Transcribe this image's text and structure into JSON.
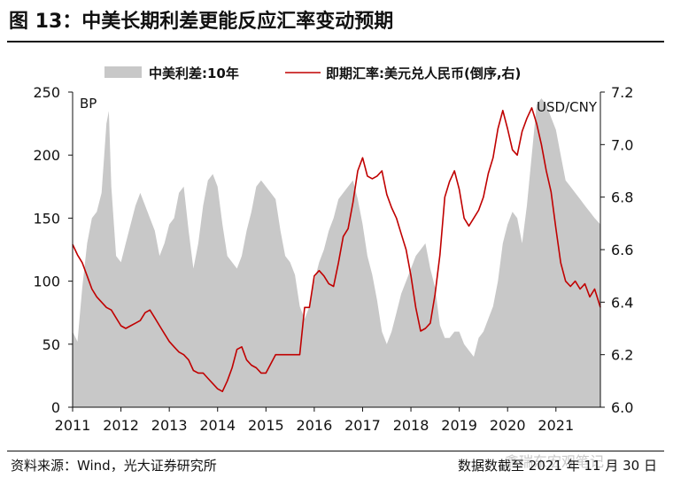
{
  "header": {
    "title": "图 13：中美长期利差更能反应汇率变动预期"
  },
  "footer": {
    "source": "资料来源：Wind，光大证券研究所",
    "date_note": "数据数截至 2021 年 11 月 30 日",
    "watermark": "鑫瑞东宏观笔记"
  },
  "colors": {
    "spread": "#c8c8c8",
    "fx": "#c00000"
  },
  "chart_data": {
    "type": "area",
    "legend_position": "top",
    "grid": false,
    "x_ticks": [
      "2011",
      "2012",
      "2013",
      "2014",
      "2015",
      "2016",
      "2017",
      "2018",
      "2019",
      "2020",
      "2021"
    ],
    "left_axis": {
      "unit": "BP",
      "ylim": [
        0,
        250
      ],
      "ticks": [
        "0",
        "50",
        "100",
        "150",
        "200",
        "250"
      ]
    },
    "right_axis": {
      "unit": "USD/CNY",
      "ylim": [
        6.0,
        7.2
      ],
      "inverted": true,
      "ticks": [
        "6.0",
        "6.2",
        "6.4",
        "6.6",
        "6.8",
        "7.0",
        "7.2"
      ]
    },
    "series": [
      {
        "name": "中美利差:10年",
        "type": "area",
        "axis": "left",
        "x": [
          2011.0,
          2011.1,
          2011.2,
          2011.3,
          2011.4,
          2011.5,
          2011.6,
          2011.7,
          2011.75,
          2011.8,
          2011.9,
          2012.0,
          2012.1,
          2012.2,
          2012.3,
          2012.4,
          2012.5,
          2012.6,
          2012.7,
          2012.8,
          2012.9,
          2013.0,
          2013.1,
          2013.2,
          2013.3,
          2013.4,
          2013.5,
          2013.6,
          2013.7,
          2013.8,
          2013.9,
          2014.0,
          2014.1,
          2014.2,
          2014.3,
          2014.4,
          2014.5,
          2014.6,
          2014.7,
          2014.8,
          2014.9,
          2015.0,
          2015.1,
          2015.2,
          2015.3,
          2015.4,
          2015.5,
          2015.6,
          2015.7,
          2015.8,
          2015.9,
          2016.0,
          2016.1,
          2016.2,
          2016.3,
          2016.4,
          2016.5,
          2016.6,
          2016.7,
          2016.8,
          2016.9,
          2017.0,
          2017.1,
          2017.2,
          2017.3,
          2017.4,
          2017.5,
          2017.6,
          2017.7,
          2017.8,
          2017.9,
          2018.0,
          2018.1,
          2018.2,
          2018.3,
          2018.4,
          2018.5,
          2018.6,
          2018.7,
          2018.8,
          2018.9,
          2019.0,
          2019.1,
          2019.2,
          2019.3,
          2019.4,
          2019.5,
          2019.6,
          2019.7,
          2019.8,
          2019.9,
          2020.0,
          2020.1,
          2020.2,
          2020.3,
          2020.4,
          2020.5,
          2020.6,
          2020.7,
          2020.8,
          2020.9,
          2021.0,
          2021.1,
          2021.2,
          2021.3,
          2021.4,
          2021.5,
          2021.6,
          2021.7,
          2021.8,
          2021.92
        ],
        "values": [
          60,
          52,
          95,
          130,
          150,
          155,
          170,
          225,
          235,
          175,
          120,
          115,
          130,
          145,
          160,
          170,
          160,
          150,
          140,
          120,
          130,
          145,
          150,
          170,
          175,
          140,
          110,
          130,
          160,
          180,
          185,
          175,
          145,
          120,
          115,
          110,
          120,
          140,
          155,
          175,
          180,
          175,
          170,
          165,
          140,
          120,
          115,
          105,
          80,
          70,
          80,
          100,
          115,
          125,
          140,
          150,
          165,
          170,
          175,
          180,
          165,
          145,
          120,
          105,
          85,
          60,
          50,
          60,
          75,
          90,
          100,
          110,
          120,
          125,
          130,
          110,
          95,
          65,
          55,
          55,
          60,
          60,
          50,
          45,
          40,
          55,
          60,
          70,
          80,
          100,
          130,
          145,
          155,
          150,
          130,
          160,
          200,
          240,
          245,
          240,
          230,
          220,
          200,
          180,
          175,
          170,
          165,
          160,
          155,
          150,
          145
        ]
      },
      {
        "name": "即期汇率:美元兑人民币(倒序,右)",
        "type": "line",
        "axis": "right",
        "x": [
          2011.0,
          2011.1,
          2011.2,
          2011.3,
          2011.4,
          2011.5,
          2011.6,
          2011.7,
          2011.8,
          2011.9,
          2012.0,
          2012.1,
          2012.2,
          2012.3,
          2012.4,
          2012.5,
          2012.6,
          2012.7,
          2012.8,
          2012.9,
          2013.0,
          2013.1,
          2013.2,
          2013.3,
          2013.4,
          2013.5,
          2013.6,
          2013.7,
          2013.8,
          2013.9,
          2014.0,
          2014.1,
          2014.2,
          2014.3,
          2014.4,
          2014.5,
          2014.6,
          2014.7,
          2014.8,
          2014.9,
          2015.0,
          2015.2,
          2015.4,
          2015.55,
          2015.62,
          2015.7,
          2015.8,
          2015.9,
          2016.0,
          2016.1,
          2016.2,
          2016.3,
          2016.4,
          2016.5,
          2016.6,
          2016.7,
          2016.8,
          2016.9,
          2017.0,
          2017.1,
          2017.2,
          2017.3,
          2017.4,
          2017.5,
          2017.6,
          2017.7,
          2017.8,
          2017.9,
          2018.0,
          2018.1,
          2018.2,
          2018.3,
          2018.4,
          2018.5,
          2018.6,
          2018.7,
          2018.8,
          2018.9,
          2019.0,
          2019.1,
          2019.2,
          2019.3,
          2019.4,
          2019.5,
          2019.6,
          2019.7,
          2019.8,
          2019.9,
          2020.0,
          2020.1,
          2020.2,
          2020.3,
          2020.4,
          2020.5,
          2020.6,
          2020.7,
          2020.8,
          2020.9,
          2021.0,
          2021.1,
          2021.2,
          2021.3,
          2021.4,
          2021.5,
          2021.6,
          2021.7,
          2021.8,
          2021.92
        ],
        "values": [
          6.62,
          6.58,
          6.55,
          6.5,
          6.45,
          6.42,
          6.4,
          6.38,
          6.37,
          6.34,
          6.31,
          6.3,
          6.31,
          6.32,
          6.33,
          6.36,
          6.37,
          6.34,
          6.31,
          6.28,
          6.25,
          6.23,
          6.21,
          6.2,
          6.18,
          6.14,
          6.13,
          6.13,
          6.11,
          6.09,
          6.07,
          6.06,
          6.1,
          6.15,
          6.22,
          6.23,
          6.18,
          6.16,
          6.15,
          6.13,
          6.13,
          6.2,
          6.2,
          6.2,
          6.2,
          6.2,
          6.38,
          6.38,
          6.5,
          6.52,
          6.5,
          6.47,
          6.46,
          6.55,
          6.65,
          6.68,
          6.78,
          6.9,
          6.95,
          6.88,
          6.87,
          6.88,
          6.9,
          6.81,
          6.76,
          6.72,
          6.66,
          6.6,
          6.5,
          6.38,
          6.29,
          6.3,
          6.32,
          6.43,
          6.58,
          6.8,
          6.86,
          6.9,
          6.83,
          6.72,
          6.69,
          6.72,
          6.75,
          6.8,
          6.89,
          6.95,
          7.06,
          7.13,
          7.06,
          6.98,
          6.96,
          7.05,
          7.1,
          7.14,
          7.08,
          7.0,
          6.9,
          6.82,
          6.68,
          6.55,
          6.48,
          6.46,
          6.48,
          6.45,
          6.47,
          6.42,
          6.45,
          6.38
        ]
      }
    ]
  }
}
